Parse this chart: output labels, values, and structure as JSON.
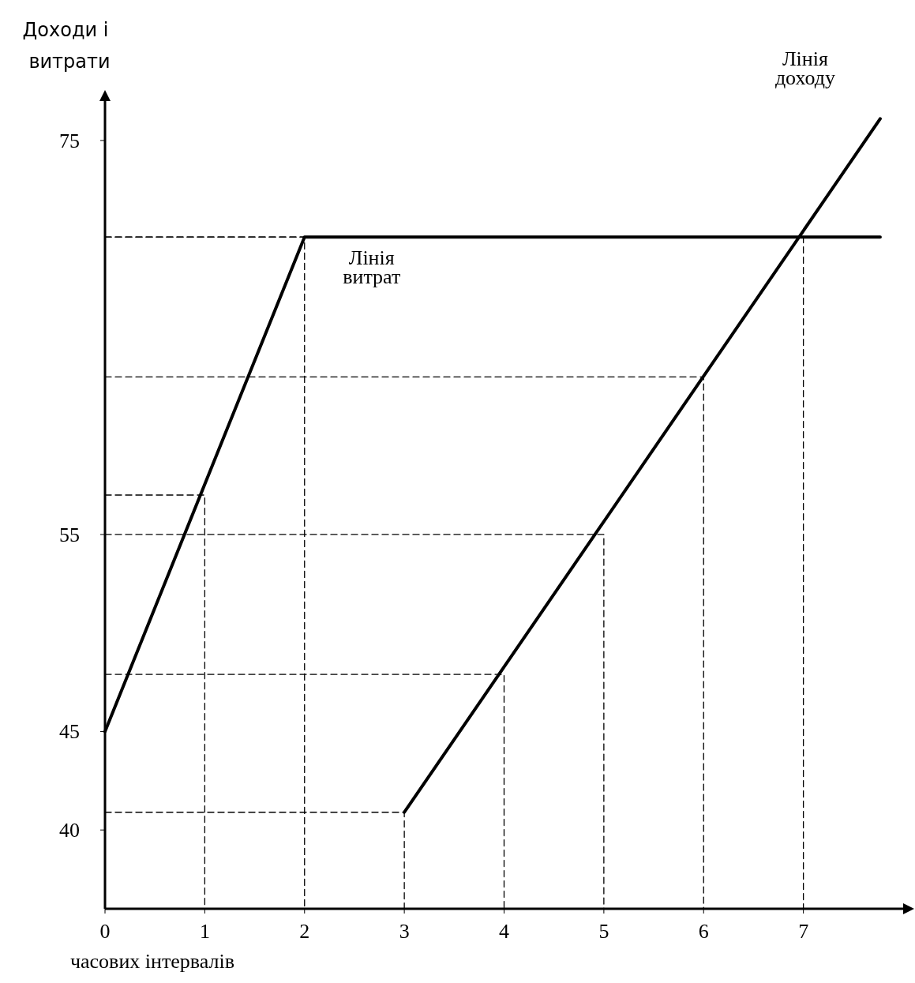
{
  "chart_data": {
    "type": "line",
    "xlabel": "часових інтервалів",
    "ylabel": "Доходи і витрати",
    "xlim": [
      0,
      8
    ],
    "ylim": [
      36,
      77
    ],
    "xticks": [
      0,
      1,
      2,
      3,
      4,
      5,
      6,
      7
    ],
    "yticks": [
      40,
      45,
      55,
      75
    ],
    "grid": false,
    "marker": "none",
    "series": [
      {
        "name": "Лінія витрат",
        "color": "#000000",
        "x": [
          0,
          2,
          7.77
        ],
        "values": [
          45,
          70.1,
          70.1
        ]
      },
      {
        "name": "Лінія доходу",
        "color": "#000000",
        "x": [
          3,
          7.77
        ],
        "values": [
          40.9,
          76.1
        ]
      },
      {
        "type": "line",
        "line_style": "dashed",
        "color": "#000000",
        "x": [
          0,
          1,
          1
        ],
        "values": [
          57,
          57,
          36
        ]
      },
      {
        "type": "line",
        "line_style": "dashed",
        "color": "#000000",
        "x": [
          0,
          2,
          2
        ],
        "values": [
          70.1,
          70.1,
          36
        ]
      },
      {
        "type": "line",
        "line_style": "dashed",
        "color": "#000000",
        "x": [
          0,
          3,
          3
        ],
        "values": [
          40.9,
          40.9,
          36
        ]
      },
      {
        "type": "line",
        "line_style": "dashed",
        "color": "#000000",
        "x": [
          0,
          4,
          4
        ],
        "values": [
          47.9,
          47.9,
          36
        ]
      },
      {
        "type": "line",
        "line_style": "dashed",
        "color": "#000000",
        "x": [
          0,
          5,
          5
        ],
        "values": [
          55,
          55,
          36
        ]
      },
      {
        "type": "line",
        "line_style": "dashed",
        "color": "#000000",
        "x": [
          0,
          6,
          6
        ],
        "values": [
          63,
          63,
          36
        ]
      },
      {
        "type": "line",
        "line_style": "dashed",
        "color": "#000000",
        "x": [
          0,
          7,
          7
        ],
        "values": [
          70.1,
          70.1,
          36
        ]
      }
    ]
  }
}
